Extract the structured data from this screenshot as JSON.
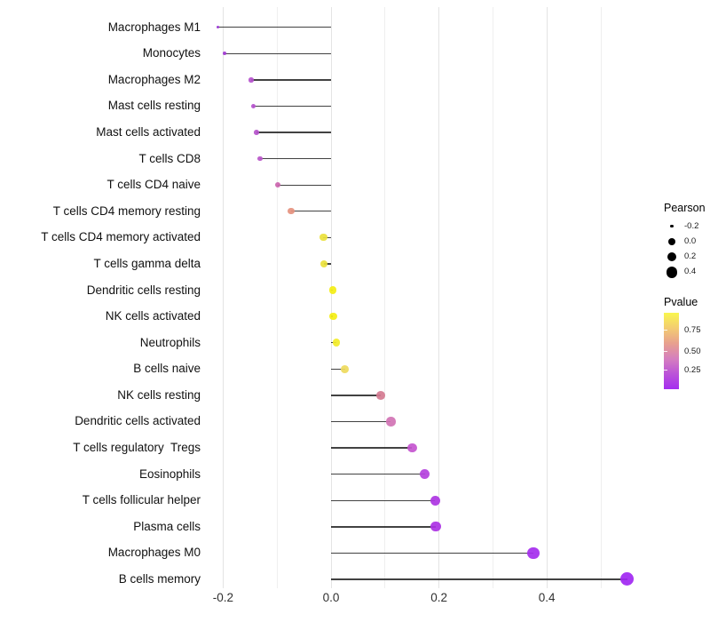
{
  "chart_data": {
    "type": "lollipop",
    "title": "",
    "xlabel": "",
    "ylabel": "",
    "x_axis": {
      "ticks": [
        -0.2,
        0.0,
        0.2,
        0.4
      ],
      "tick_labels": [
        "-0.2",
        "0.0",
        "0.2",
        "0.4"
      ],
      "range": [
        -0.232,
        0.575
      ],
      "gridline_step": 0.1,
      "gridline_values": [
        -0.2,
        -0.1,
        0.0,
        0.1,
        0.2,
        0.3,
        0.4,
        0.5
      ]
    },
    "baseline": 0.0,
    "grid": true,
    "legend_position": "right",
    "size_encoding": "Pearson",
    "color_encoding": "Pvalue",
    "categories": [
      "Macrophages M1",
      "Monocytes",
      "Macrophages M2",
      "Mast cells resting",
      "Mast cells activated",
      "T cells CD8",
      "T cells CD4 naive",
      "T cells CD4 memory resting",
      "T cells CD4 memory activated",
      "T cells gamma delta",
      "Dendritic cells resting",
      "NK cells activated",
      "Neutrophils",
      "B cells naive",
      "NK cells resting",
      "Dendritic cells activated",
      "T cells regulatory  Tregs",
      "Eosinophils",
      "T cells follicular helper",
      "Plasma cells",
      "Macrophages M0",
      "B cells memory"
    ],
    "points": [
      {
        "label": "Macrophages M1",
        "pearson": -0.21,
        "color": "#9b35d6"
      },
      {
        "label": "Monocytes",
        "pearson": -0.197,
        "color": "#a13ad2"
      },
      {
        "label": "Macrophages M2",
        "pearson": -0.148,
        "color": "#b551cd"
      },
      {
        "label": "Mast cells resting",
        "pearson": -0.144,
        "color": "#b551cd"
      },
      {
        "label": "Mast cells activated",
        "pearson": -0.138,
        "color": "#b553cb"
      },
      {
        "label": "T cells CD8",
        "pearson": -0.131,
        "color": "#b855c9"
      },
      {
        "label": "T cells CD4 naive",
        "pearson": -0.099,
        "color": "#cb64ae"
      },
      {
        "label": "T cells CD4 memory resting",
        "pearson": -0.074,
        "color": "#e5917e"
      },
      {
        "label": "T cells CD4 memory activated",
        "pearson": -0.014,
        "color": "#eae13c"
      },
      {
        "label": "T cells gamma delta",
        "pearson": -0.013,
        "color": "#eae13c"
      },
      {
        "label": "Dendritic cells resting",
        "pearson": 0.003,
        "color": "#f4ee14"
      },
      {
        "label": "NK cells activated",
        "pearson": 0.004,
        "color": "#f4ee14"
      },
      {
        "label": "Neutrophils",
        "pearson": 0.01,
        "color": "#f2eb28"
      },
      {
        "label": "B cells naive",
        "pearson": 0.026,
        "color": "#eeda5c"
      },
      {
        "label": "NK cells resting",
        "pearson": 0.092,
        "color": "#d47a90"
      },
      {
        "label": "Dendritic cells activated",
        "pearson": 0.111,
        "color": "#d173b4"
      },
      {
        "label": "T cells regulatory  Tregs",
        "pearson": 0.15,
        "color": "#c455cf"
      },
      {
        "label": "Eosinophils",
        "pearson": 0.174,
        "color": "#b441dd"
      },
      {
        "label": "T cells follicular helper",
        "pearson": 0.193,
        "color": "#ad34e2"
      },
      {
        "label": "Plasma cells",
        "pearson": 0.194,
        "color": "#ab31e4"
      },
      {
        "label": "Macrophages M0",
        "pearson": 0.375,
        "color": "#a52cee"
      },
      {
        "label": "B cells memory",
        "pearson": 0.549,
        "color": "#a127f2"
      }
    ]
  },
  "legend": {
    "pearson": {
      "title": "Pearson",
      "sizes": [
        -0.2,
        0.0,
        0.2,
        0.4
      ],
      "labels": [
        "-0.2",
        "0.0",
        "0.2",
        "0.4"
      ],
      "dot_color": "#000000"
    },
    "pvalue": {
      "title": "Pvalue",
      "tick_labels": [
        "0.75",
        "0.50",
        "0.25"
      ],
      "gradient_top_to_bottom": [
        "#f9f64e",
        "#f3cc72",
        "#e8a08e",
        "#d57fbe",
        "#bb53d8",
        "#a52df0"
      ]
    }
  },
  "colors": {
    "background": "#ffffff",
    "stem": "#282828",
    "grid_major": "#e4e4e4",
    "grid_minor": "#efefef",
    "axis_text": "#303030",
    "label_text": "#111111"
  }
}
